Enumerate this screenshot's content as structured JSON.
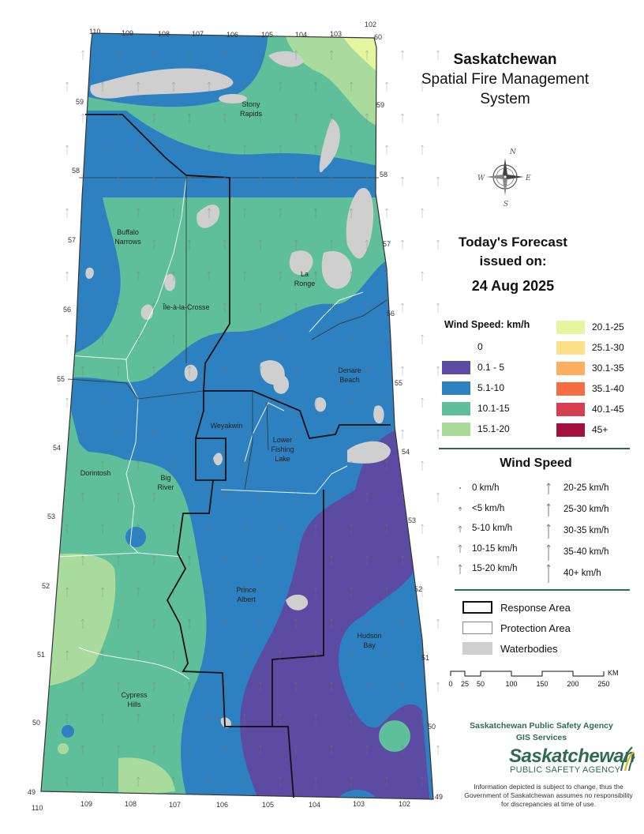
{
  "title": {
    "line1": "Saskatchewan",
    "line2": "Spatial Fire Management",
    "line3": "System"
  },
  "forecast": {
    "line1": "Today's Forecast",
    "line2": "issued on:",
    "date": "24 Aug 2025"
  },
  "wind_speed_legend": {
    "title": "Wind Speed: km/h",
    "classes": [
      {
        "label": "0",
        "color": "#ffffff"
      },
      {
        "label": "0.1 - 5",
        "color": "#5b4ba3"
      },
      {
        "label": "5.1-10",
        "color": "#2e81c1"
      },
      {
        "label": "10.1-15",
        "color": "#5fbf9a"
      },
      {
        "label": "15.1-20",
        "color": "#a9dc9c"
      },
      {
        "label": "20.1-25",
        "color": "#e6f5a0"
      },
      {
        "label": "25.1-30",
        "color": "#fde08a"
      },
      {
        "label": "30.1-35",
        "color": "#fdae61"
      },
      {
        "label": "35.1-40",
        "color": "#f46d43"
      },
      {
        "label": "40.1-45",
        "color": "#d73f4e"
      },
      {
        "label": "45+",
        "color": "#a50f3d"
      }
    ]
  },
  "wind_arrow_legend": {
    "title": "Wind Speed",
    "left": [
      "0 km/h",
      "<5 km/h",
      "5-10 km/h",
      "10-15 km/h",
      "15-20 km/h"
    ],
    "right": [
      "20-25 km/h",
      "25-30 km/h",
      "30-35 km/h",
      "35-40 km/h",
      "40+ km/h"
    ]
  },
  "area_legend": {
    "response": "Response Area",
    "protection": "Protection Area",
    "water": "Waterbodies"
  },
  "scale_bar": {
    "unit": "KM",
    "labels": [
      "0",
      "25",
      "50",
      "100",
      "150",
      "200",
      "250"
    ]
  },
  "agency": {
    "line1": "Saskatchewan Public Safety Agency",
    "line2": "GIS  Services",
    "logo_word": "Saskatchewan",
    "logo_sub": "PUBLIC SAFETY AGENCY"
  },
  "disclaimer": "Information depicted is subject to change, thus the Government of Saskatchewan assumes no responsibility for discrepancies at time of use.",
  "compass_letters": {
    "n": "N",
    "e": "E",
    "s": "S",
    "w": "W"
  },
  "map": {
    "longitude_top": [
      "110",
      "109",
      "108",
      "107",
      "106",
      "105",
      "104",
      "103",
      "102"
    ],
    "longitude_bottom": [
      "110",
      "109",
      "108",
      "107",
      "106",
      "105",
      "104",
      "103",
      "102"
    ],
    "latitude_left": [
      "59",
      "58",
      "57",
      "56",
      "55",
      "54",
      "53",
      "52",
      "51",
      "50",
      "49"
    ],
    "latitude_right": [
      "60",
      "59",
      "58",
      "57",
      "56",
      "55",
      "54",
      "53",
      "52",
      "51",
      "50",
      "49"
    ],
    "places": [
      {
        "name": "Stony\nRapids",
        "lines": [
          "Stony",
          "Rapids"
        ]
      },
      {
        "name": "Buffalo Narrows",
        "lines": [
          "Buffalo",
          "Narrows"
        ]
      },
      {
        "name": "La Ronge",
        "lines": [
          "La",
          "Ronge"
        ]
      },
      {
        "name": "Île-à-la-Crosse",
        "lines": [
          "Île-à-la-Crosse"
        ]
      },
      {
        "name": "Denare Beach",
        "lines": [
          "Denare",
          "Beach"
        ]
      },
      {
        "name": "Weyakwin",
        "lines": [
          "Weyakwin"
        ]
      },
      {
        "name": "Lower Fishing Lake",
        "lines": [
          "Lower",
          "Fishing",
          "Lake"
        ]
      },
      {
        "name": "Dorintosh",
        "lines": [
          "Dorintosh"
        ]
      },
      {
        "name": "Big River",
        "lines": [
          "Big",
          "River"
        ]
      },
      {
        "name": "Prince Albert",
        "lines": [
          "Prince",
          "Albert"
        ]
      },
      {
        "name": "Hudson Bay",
        "lines": [
          "Hudson",
          "Bay"
        ]
      },
      {
        "name": "Cypress Hills",
        "lines": [
          "Cypress",
          "Hills"
        ]
      }
    ]
  }
}
